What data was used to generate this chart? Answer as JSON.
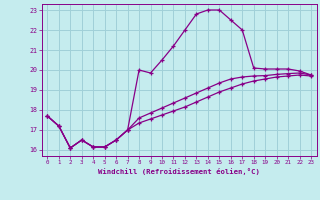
{
  "xlabel": "Windchill (Refroidissement éolien,°C)",
  "bg_color": "#c5ecee",
  "grid_color": "#a0d0d8",
  "line_color": "#880088",
  "xlim": [
    -0.5,
    23.5
  ],
  "ylim": [
    15.7,
    23.3
  ],
  "yticks": [
    16,
    17,
    18,
    19,
    20,
    21,
    22,
    23
  ],
  "xticks": [
    0,
    1,
    2,
    3,
    4,
    5,
    6,
    7,
    8,
    9,
    10,
    11,
    12,
    13,
    14,
    15,
    16,
    17,
    18,
    19,
    20,
    21,
    22,
    23
  ],
  "curve1_x": [
    0,
    1,
    2,
    3,
    4,
    5,
    6,
    7,
    8,
    9,
    10,
    11,
    12,
    13,
    14,
    15,
    16,
    17,
    18,
    19,
    20,
    21,
    22,
    23
  ],
  "curve1_y": [
    17.7,
    17.2,
    16.1,
    16.5,
    16.15,
    16.15,
    16.5,
    17.0,
    20.0,
    19.85,
    20.5,
    21.2,
    22.0,
    22.8,
    23.0,
    23.0,
    22.5,
    22.0,
    20.1,
    20.05,
    20.05,
    20.05,
    19.95,
    19.75
  ],
  "curve2_x": [
    0,
    1,
    2,
    3,
    4,
    5,
    6,
    7,
    8,
    9,
    10,
    11,
    12,
    13,
    14,
    15,
    16,
    17,
    18,
    19,
    20,
    21,
    22,
    23
  ],
  "curve2_y": [
    17.7,
    17.2,
    16.1,
    16.5,
    16.15,
    16.15,
    16.5,
    17.0,
    17.35,
    17.55,
    17.75,
    17.95,
    18.15,
    18.4,
    18.65,
    18.9,
    19.1,
    19.3,
    19.45,
    19.55,
    19.65,
    19.7,
    19.75,
    19.7
  ],
  "curve3_x": [
    0,
    1,
    2,
    3,
    4,
    5,
    6,
    7,
    8,
    9,
    10,
    11,
    12,
    13,
    14,
    15,
    16,
    17,
    18,
    19,
    20,
    21,
    22,
    23
  ],
  "curve3_y": [
    17.7,
    17.2,
    16.1,
    16.5,
    16.15,
    16.15,
    16.5,
    17.0,
    17.6,
    17.85,
    18.1,
    18.35,
    18.6,
    18.85,
    19.1,
    19.35,
    19.55,
    19.65,
    19.7,
    19.72,
    19.78,
    19.82,
    19.85,
    19.75
  ]
}
